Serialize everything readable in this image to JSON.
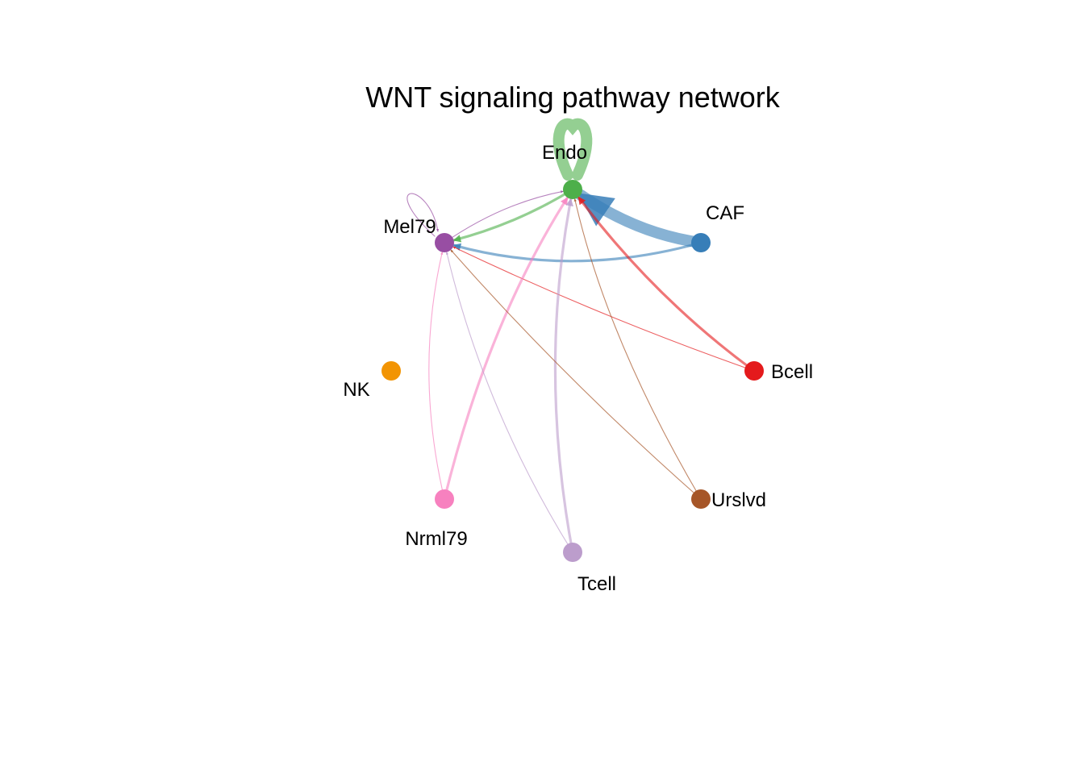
{
  "title": "WNT signaling pathway network",
  "nodes": [
    {
      "id": "Endo",
      "label": "Endo",
      "color": "#4DAF4A"
    },
    {
      "id": "CAF",
      "label": "CAF",
      "color": "#377EB8"
    },
    {
      "id": "Mel79",
      "label": "Mel79",
      "color": "#984EA3"
    },
    {
      "id": "NK",
      "label": "NK",
      "color": "#F29403"
    },
    {
      "id": "Bcell",
      "label": "Bcell",
      "color": "#E41A1C"
    },
    {
      "id": "Nrml79",
      "label": "Nrml79",
      "color": "#F781BF"
    },
    {
      "id": "Urslvd",
      "label": "Urslvd",
      "color": "#A65628"
    },
    {
      "id": "Tcell",
      "label": "Tcell",
      "color": "#BC9DCC"
    }
  ],
  "edges": [
    {
      "source": "CAF",
      "target": "Endo",
      "weight": "strong"
    },
    {
      "source": "CAF",
      "target": "Mel79",
      "weight": "medium"
    },
    {
      "source": "Endo",
      "target": "Endo",
      "weight": "strong"
    },
    {
      "source": "Endo",
      "target": "Mel79",
      "weight": "medium"
    },
    {
      "source": "Mel79",
      "target": "Endo",
      "weight": "thin"
    },
    {
      "source": "Mel79",
      "target": "Mel79",
      "weight": "thin"
    },
    {
      "source": "Bcell",
      "target": "Endo",
      "weight": "medium"
    },
    {
      "source": "Bcell",
      "target": "Mel79",
      "weight": "thin"
    },
    {
      "source": "Nrml79",
      "target": "Endo",
      "weight": "medium"
    },
    {
      "source": "Nrml79",
      "target": "Mel79",
      "weight": "thin"
    },
    {
      "source": "Tcell",
      "target": "Endo",
      "weight": "medium"
    },
    {
      "source": "Tcell",
      "target": "Mel79",
      "weight": "thin"
    },
    {
      "source": "Urslvd",
      "target": "Endo",
      "weight": "thin"
    },
    {
      "source": "Urslvd",
      "target": "Mel79",
      "weight": "thin"
    }
  ]
}
